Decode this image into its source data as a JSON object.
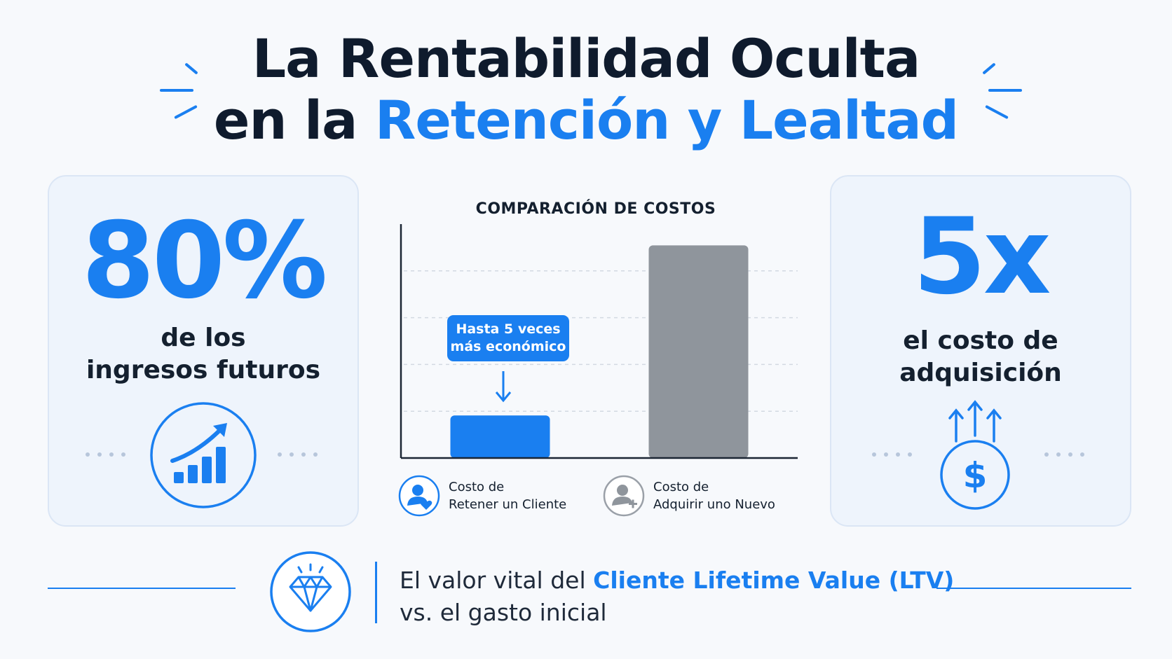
{
  "title": {
    "line1": "La Rentabilidad Oculta",
    "line2_prefix": "en la",
    "line2_accent": "Retención y Lealtad"
  },
  "left_card": {
    "stat": "80%",
    "line1": "de los",
    "line2": "ingresos futuros",
    "icon": "growth-chart-icon"
  },
  "right_card": {
    "stat": "5x",
    "line1": "el costo de",
    "line2": "adquisición",
    "icon": "dollar-arrows-up-icon"
  },
  "chart_data": {
    "type": "bar",
    "title": "COMPARACIÓN DE COSTOS",
    "categories": [
      "Costo de Retener un Cliente",
      "Costo de Adquirir uno Nuevo"
    ],
    "values": [
      1,
      5
    ],
    "ylim": [
      0,
      5.5
    ],
    "grid": true,
    "colors": [
      "#1a7ff0",
      "#8f959c"
    ],
    "annotation": {
      "line1": "Hasta 5 veces",
      "line2": "más económico"
    },
    "legend": [
      {
        "line1": "Costo de",
        "line2": "Retener un Cliente",
        "icon": "user-heart-icon"
      },
      {
        "line1": "Costo de",
        "line2": "Adquirir uno Nuevo",
        "icon": "user-plus-icon"
      }
    ]
  },
  "footer": {
    "text_prefix": "El valor vital del",
    "text_accent": "Cliente Lifetime Value (LTV)",
    "text_line2": "vs. el gasto inicial",
    "icon": "diamond-icon"
  },
  "colors": {
    "accent": "#1a7ff0",
    "dark": "#0f1b2d",
    "card_bg": "#eef4fc",
    "bar_gray": "#8f959c"
  }
}
